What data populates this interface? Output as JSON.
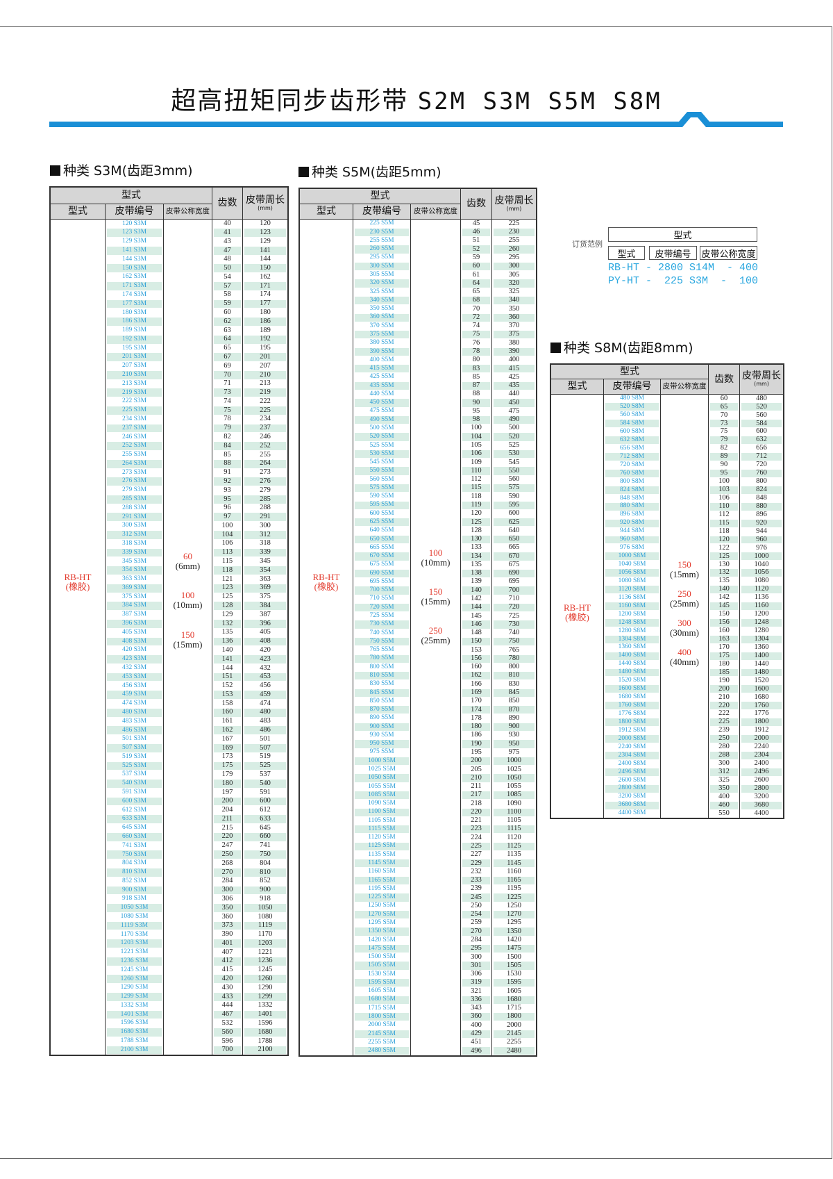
{
  "title": {
    "cn": "超高扭矩同步齿形带",
    "models": "S2M S3M S5M S8M"
  },
  "colors": {
    "accent_blue": "#1a8fd6",
    "code_text": "#2b9fd8",
    "highlight_red": "#e33b2e",
    "row_stripe": "#d8ede4",
    "header_gray": "#d6d6d6"
  },
  "order_example": {
    "label": "订货范例",
    "group_header": "型式",
    "columns": [
      "型式",
      "皮带编号",
      "皮带公称宽度"
    ],
    "lines": [
      "RB-HT - 2800 S14M  - 400",
      "PY-HT -  225 S3M  -  100"
    ]
  },
  "tables": [
    {
      "heading": "种类 S3M(齿距3mm)",
      "header": {
        "group": "型式",
        "type": "型式",
        "code": "皮带编号",
        "width": "皮带公称宽度",
        "teeth": "齿数",
        "length": "皮带周长",
        "unit": "(mm)"
      },
      "type_label": [
        "RB-HT",
        "(橡胶)"
      ],
      "widths": [
        [
          "60",
          "(6mm)"
        ],
        [
          "100",
          "(10mm)"
        ],
        [
          "150",
          "(15mm)"
        ]
      ],
      "rows": [
        [
          "120 S3M",
          40,
          120
        ],
        [
          "123 S3M",
          41,
          123
        ],
        [
          "129 S3M",
          43,
          129
        ],
        [
          "141 S3M",
          47,
          141
        ],
        [
          "144 S3M",
          48,
          144
        ],
        [
          "150 S3M",
          50,
          150
        ],
        [
          "162 S3M",
          54,
          162
        ],
        [
          "171 S3M",
          57,
          171
        ],
        [
          "174 S3M",
          58,
          174
        ],
        [
          "177 S3M",
          59,
          177
        ],
        [
          "180 S3M",
          60,
          180
        ],
        [
          "186 S3M",
          62,
          186
        ],
        [
          "189 S3M",
          63,
          189
        ],
        [
          "192 S3M",
          64,
          192
        ],
        [
          "195 S3M",
          65,
          195
        ],
        [
          "201 S3M",
          67,
          201
        ],
        [
          "207 S3M",
          69,
          207
        ],
        [
          "210 S3M",
          70,
          210
        ],
        [
          "213 S3M",
          71,
          213
        ],
        [
          "219 S3M",
          73,
          219
        ],
        [
          "222 S3M",
          74,
          222
        ],
        [
          "225 S3M",
          75,
          225
        ],
        [
          "234 S3M",
          78,
          234
        ],
        [
          "237 S3M",
          79,
          237
        ],
        [
          "246 S3M",
          82,
          246
        ],
        [
          "252 S3M",
          84,
          252
        ],
        [
          "255 S3M",
          85,
          255
        ],
        [
          "264 S3M",
          88,
          264
        ],
        [
          "273 S3M",
          91,
          273
        ],
        [
          "276 S3M",
          92,
          276
        ],
        [
          "279 S3M",
          93,
          279
        ],
        [
          "285 S3M",
          95,
          285
        ],
        [
          "288 S3M",
          96,
          288
        ],
        [
          "291 S3M",
          97,
          291
        ],
        [
          "300 S3M",
          100,
          300
        ],
        [
          "312 S3M",
          104,
          312
        ],
        [
          "318 S3M",
          106,
          318
        ],
        [
          "339 S3M",
          113,
          339
        ],
        [
          "345 S3M",
          115,
          345
        ],
        [
          "354 S3M",
          118,
          354
        ],
        [
          "363 S3M",
          121,
          363
        ],
        [
          "369 S3M",
          123,
          369
        ],
        [
          "375 S3M",
          125,
          375
        ],
        [
          "384 S3M",
          128,
          384
        ],
        [
          "387 S3M",
          129,
          387
        ],
        [
          "396 S3M",
          132,
          396
        ],
        [
          "405 S3M",
          135,
          405
        ],
        [
          "408 S3M",
          136,
          408
        ],
        [
          "420 S3M",
          140,
          420
        ],
        [
          "423 S3M",
          141,
          423
        ],
        [
          "432 S3M",
          144,
          432
        ],
        [
          "453 S3M",
          151,
          453
        ],
        [
          "456 S3M",
          152,
          456
        ],
        [
          "459 S3M",
          153,
          459
        ],
        [
          "474 S3M",
          158,
          474
        ],
        [
          "480 S3M",
          160,
          480
        ],
        [
          "483 S3M",
          161,
          483
        ],
        [
          "486 S3M",
          162,
          486
        ],
        [
          "501 S3M",
          167,
          501
        ],
        [
          "507 S3M",
          169,
          507
        ],
        [
          "519 S3M",
          173,
          519
        ],
        [
          "525 S3M",
          175,
          525
        ],
        [
          "537 S3M",
          179,
          537
        ],
        [
          "540 S3M",
          180,
          540
        ],
        [
          "591 S3M",
          197,
          591
        ],
        [
          "600 S3M",
          200,
          600
        ],
        [
          "612 S3M",
          204,
          612
        ],
        [
          "633 S3M",
          211,
          633
        ],
        [
          "645 S3M",
          215,
          645
        ],
        [
          "660 S3M",
          220,
          660
        ],
        [
          "741 S3M",
          247,
          741
        ],
        [
          "750 S3M",
          250,
          750
        ],
        [
          "804 S3M",
          268,
          804
        ],
        [
          "810 S3M",
          270,
          810
        ],
        [
          "852 S3M",
          284,
          852
        ],
        [
          "900 S3M",
          300,
          900
        ],
        [
          "918 S3M",
          306,
          918
        ],
        [
          "1050 S3M",
          350,
          1050
        ],
        [
          "1080 S3M",
          360,
          1080
        ],
        [
          "1119 S3M",
          373,
          1119
        ],
        [
          "1170 S3M",
          390,
          1170
        ],
        [
          "1203 S3M",
          401,
          1203
        ],
        [
          "1221 S3M",
          407,
          1221
        ],
        [
          "1236 S3M",
          412,
          1236
        ],
        [
          "1245 S3M",
          415,
          1245
        ],
        [
          "1260 S3M",
          420,
          1260
        ],
        [
          "1290 S3M",
          430,
          1290
        ],
        [
          "1299 S3M",
          433,
          1299
        ],
        [
          "1332 S3M",
          444,
          1332
        ],
        [
          "1401 S3M",
          467,
          1401
        ],
        [
          "1596 S3M",
          532,
          1596
        ],
        [
          "1680 S3M",
          560,
          1680
        ],
        [
          "1788 S3M",
          596,
          1788
        ],
        [
          "2100 S3M",
          700,
          2100
        ]
      ]
    },
    {
      "heading": "种类 S5M(齿距5mm)",
      "header": {
        "group": "型式",
        "type": "型式",
        "code": "皮带编号",
        "width": "皮带公称宽度",
        "teeth": "齿数",
        "length": "皮带周长",
        "unit": "(mm)"
      },
      "type_label": [
        "RB-HT",
        "(橡胶)"
      ],
      "widths": [
        [
          "100",
          "(10mm)"
        ],
        [
          "150",
          "(15mm)"
        ],
        [
          "250",
          "(25mm)"
        ]
      ],
      "rows": [
        [
          "225 S5M",
          45,
          225
        ],
        [
          "230 S5M",
          46,
          230
        ],
        [
          "255 S5M",
          51,
          255
        ],
        [
          "260 S5M",
          52,
          260
        ],
        [
          "295 S5M",
          59,
          295
        ],
        [
          "300 S5M",
          60,
          300
        ],
        [
          "305 S5M",
          61,
          305
        ],
        [
          "320 S5M",
          64,
          320
        ],
        [
          "325 S5M",
          65,
          325
        ],
        [
          "340 S5M",
          68,
          340
        ],
        [
          "350 S5M",
          70,
          350
        ],
        [
          "360 S5M",
          72,
          360
        ],
        [
          "370 S5M",
          74,
          370
        ],
        [
          "375 S5M",
          75,
          375
        ],
        [
          "380 S5M",
          76,
          380
        ],
        [
          "390 S5M",
          78,
          390
        ],
        [
          "400 S5M",
          80,
          400
        ],
        [
          "415 S5M",
          83,
          415
        ],
        [
          "425 S5M",
          85,
          425
        ],
        [
          "435 S5M",
          87,
          435
        ],
        [
          "440 S5M",
          88,
          440
        ],
        [
          "450 S5M",
          90,
          450
        ],
        [
          "475 S5M",
          95,
          475
        ],
        [
          "490 S5M",
          98,
          490
        ],
        [
          "500 S5M",
          100,
          500
        ],
        [
          "520 S5M",
          104,
          520
        ],
        [
          "525 S5M",
          105,
          525
        ],
        [
          "530 S5M",
          106,
          530
        ],
        [
          "545 S5M",
          109,
          545
        ],
        [
          "550 S5M",
          110,
          550
        ],
        [
          "560 S5M",
          112,
          560
        ],
        [
          "575 S5M",
          115,
          575
        ],
        [
          "590 S5M",
          118,
          590
        ],
        [
          "595 S5M",
          119,
          595
        ],
        [
          "600 S5M",
          120,
          600
        ],
        [
          "625 S5M",
          125,
          625
        ],
        [
          "640 S5M",
          128,
          640
        ],
        [
          "650 S5M",
          130,
          650
        ],
        [
          "665 S5M",
          133,
          665
        ],
        [
          "670 S5M",
          134,
          670
        ],
        [
          "675 S5M",
          135,
          675
        ],
        [
          "690 S5M",
          138,
          690
        ],
        [
          "695 S5M",
          139,
          695
        ],
        [
          "700 S5M",
          140,
          700
        ],
        [
          "710 S5M",
          142,
          710
        ],
        [
          "720 S5M",
          144,
          720
        ],
        [
          "725 S5M",
          145,
          725
        ],
        [
          "730 S5M",
          146,
          730
        ],
        [
          "740 S5M",
          148,
          740
        ],
        [
          "750 S5M",
          150,
          750
        ],
        [
          "765 S5M",
          153,
          765
        ],
        [
          "780 S5M",
          156,
          780
        ],
        [
          "800 S5M",
          160,
          800
        ],
        [
          "810 S5M",
          162,
          810
        ],
        [
          "830 S5M",
          166,
          830
        ],
        [
          "845 S5M",
          169,
          845
        ],
        [
          "850 S5M",
          170,
          850
        ],
        [
          "870 S5M",
          174,
          870
        ],
        [
          "890 S5M",
          178,
          890
        ],
        [
          "900 S5M",
          180,
          900
        ],
        [
          "930 S5M",
          186,
          930
        ],
        [
          "950 S5M",
          190,
          950
        ],
        [
          "975 S5M",
          195,
          975
        ],
        [
          "1000 S5M",
          200,
          1000
        ],
        [
          "1025 S5M",
          205,
          1025
        ],
        [
          "1050 S5M",
          210,
          1050
        ],
        [
          "1055 S5M",
          211,
          1055
        ],
        [
          "1085 S5M",
          217,
          1085
        ],
        [
          "1090 S5M",
          218,
          1090
        ],
        [
          "1100 S5M",
          220,
          1100
        ],
        [
          "1105 S5M",
          221,
          1105
        ],
        [
          "1115 S5M",
          223,
          1115
        ],
        [
          "1120 S5M",
          224,
          1120
        ],
        [
          "1125 S5M",
          225,
          1125
        ],
        [
          "1135 S5M",
          227,
          1135
        ],
        [
          "1145 S5M",
          229,
          1145
        ],
        [
          "1160 S5M",
          232,
          1160
        ],
        [
          "1165 S5M",
          233,
          1165
        ],
        [
          "1195 S5M",
          239,
          1195
        ],
        [
          "1225 S5M",
          245,
          1225
        ],
        [
          "1250 S5M",
          250,
          1250
        ],
        [
          "1270 S5M",
          254,
          1270
        ],
        [
          "1295 S5M",
          259,
          1295
        ],
        [
          "1350 S5M",
          270,
          1350
        ],
        [
          "1420 S5M",
          284,
          1420
        ],
        [
          "1475 S5M",
          295,
          1475
        ],
        [
          "1500 S5M",
          300,
          1500
        ],
        [
          "1505 S5M",
          301,
          1505
        ],
        [
          "1530 S5M",
          306,
          1530
        ],
        [
          "1595 S5M",
          319,
          1595
        ],
        [
          "1605 S5M",
          321,
          1605
        ],
        [
          "1680 S5M",
          336,
          1680
        ],
        [
          "1715 S5M",
          343,
          1715
        ],
        [
          "1800 S5M",
          360,
          1800
        ],
        [
          "2000 S5M",
          400,
          2000
        ],
        [
          "2145 S5M",
          429,
          2145
        ],
        [
          "2255 S5M",
          451,
          2255
        ],
        [
          "2480 S5M",
          496,
          2480
        ]
      ]
    },
    {
      "heading": "种类 S8M(齿距8mm)",
      "header": {
        "group": "型式",
        "type": "型式",
        "code": "皮带编号",
        "width": "皮带公称宽度",
        "teeth": "齿数",
        "length": "皮带周长",
        "unit": "(mm)"
      },
      "type_label": [
        "RB-HT",
        "(橡胶)"
      ],
      "widths": [
        [
          "150",
          "(15mm)"
        ],
        [
          "250",
          "(25mm)"
        ],
        [
          "300",
          "(30mm)"
        ],
        [
          "400",
          "(40mm)"
        ]
      ],
      "rows": [
        [
          "480 S8M",
          60,
          480
        ],
        [
          "520 S8M",
          65,
          520
        ],
        [
          "560 S8M",
          70,
          560
        ],
        [
          "584 S8M",
          73,
          584
        ],
        [
          "600 S8M",
          75,
          600
        ],
        [
          "632 S8M",
          79,
          632
        ],
        [
          "656 S8M",
          82,
          656
        ],
        [
          "712 S8M",
          89,
          712
        ],
        [
          "720 S8M",
          90,
          720
        ],
        [
          "760 S8M",
          95,
          760
        ],
        [
          "800 S8M",
          100,
          800
        ],
        [
          "824 S8M",
          103,
          824
        ],
        [
          "848 S8M",
          106,
          848
        ],
        [
          "880 S8M",
          110,
          880
        ],
        [
          "896 S8M",
          112,
          896
        ],
        [
          "920 S8M",
          115,
          920
        ],
        [
          "944 S8M",
          118,
          944
        ],
        [
          "960 S8M",
          120,
          960
        ],
        [
          "976 S8M",
          122,
          976
        ],
        [
          "1000 S8M",
          125,
          1000
        ],
        [
          "1040 S8M",
          130,
          1040
        ],
        [
          "1056 S8M",
          132,
          1056
        ],
        [
          "1080 S8M",
          135,
          1080
        ],
        [
          "1120 S8M",
          140,
          1120
        ],
        [
          "1136 S8M",
          142,
          1136
        ],
        [
          "1160 S8M",
          145,
          1160
        ],
        [
          "1200 S8M",
          150,
          1200
        ],
        [
          "1248 S8M",
          156,
          1248
        ],
        [
          "1280 S8M",
          160,
          1280
        ],
        [
          "1304 S8M",
          163,
          1304
        ],
        [
          "1360 S8M",
          170,
          1360
        ],
        [
          "1400 S8M",
          175,
          1400
        ],
        [
          "1440 S8M",
          180,
          1440
        ],
        [
          "1480 S8M",
          185,
          1480
        ],
        [
          "1520 S8M",
          190,
          1520
        ],
        [
          "1600 S8M",
          200,
          1600
        ],
        [
          "1680 S8M",
          210,
          1680
        ],
        [
          "1760 S8M",
          220,
          1760
        ],
        [
          "1776 S8M",
          222,
          1776
        ],
        [
          "1800 S8M",
          225,
          1800
        ],
        [
          "1912 S8M",
          239,
          1912
        ],
        [
          "2000 S8M",
          250,
          2000
        ],
        [
          "2240 S8M",
          280,
          2240
        ],
        [
          "2304 S8M",
          288,
          2304
        ],
        [
          "2400 S8M",
          300,
          2400
        ],
        [
          "2496 S8M",
          312,
          2496
        ],
        [
          "2600 S8M",
          325,
          2600
        ],
        [
          "2800 S8M",
          350,
          2800
        ],
        [
          "3200 S8M",
          400,
          3200
        ],
        [
          "3680 S8M",
          460,
          3680
        ],
        [
          "4400 S8M",
          550,
          4400
        ]
      ]
    }
  ]
}
